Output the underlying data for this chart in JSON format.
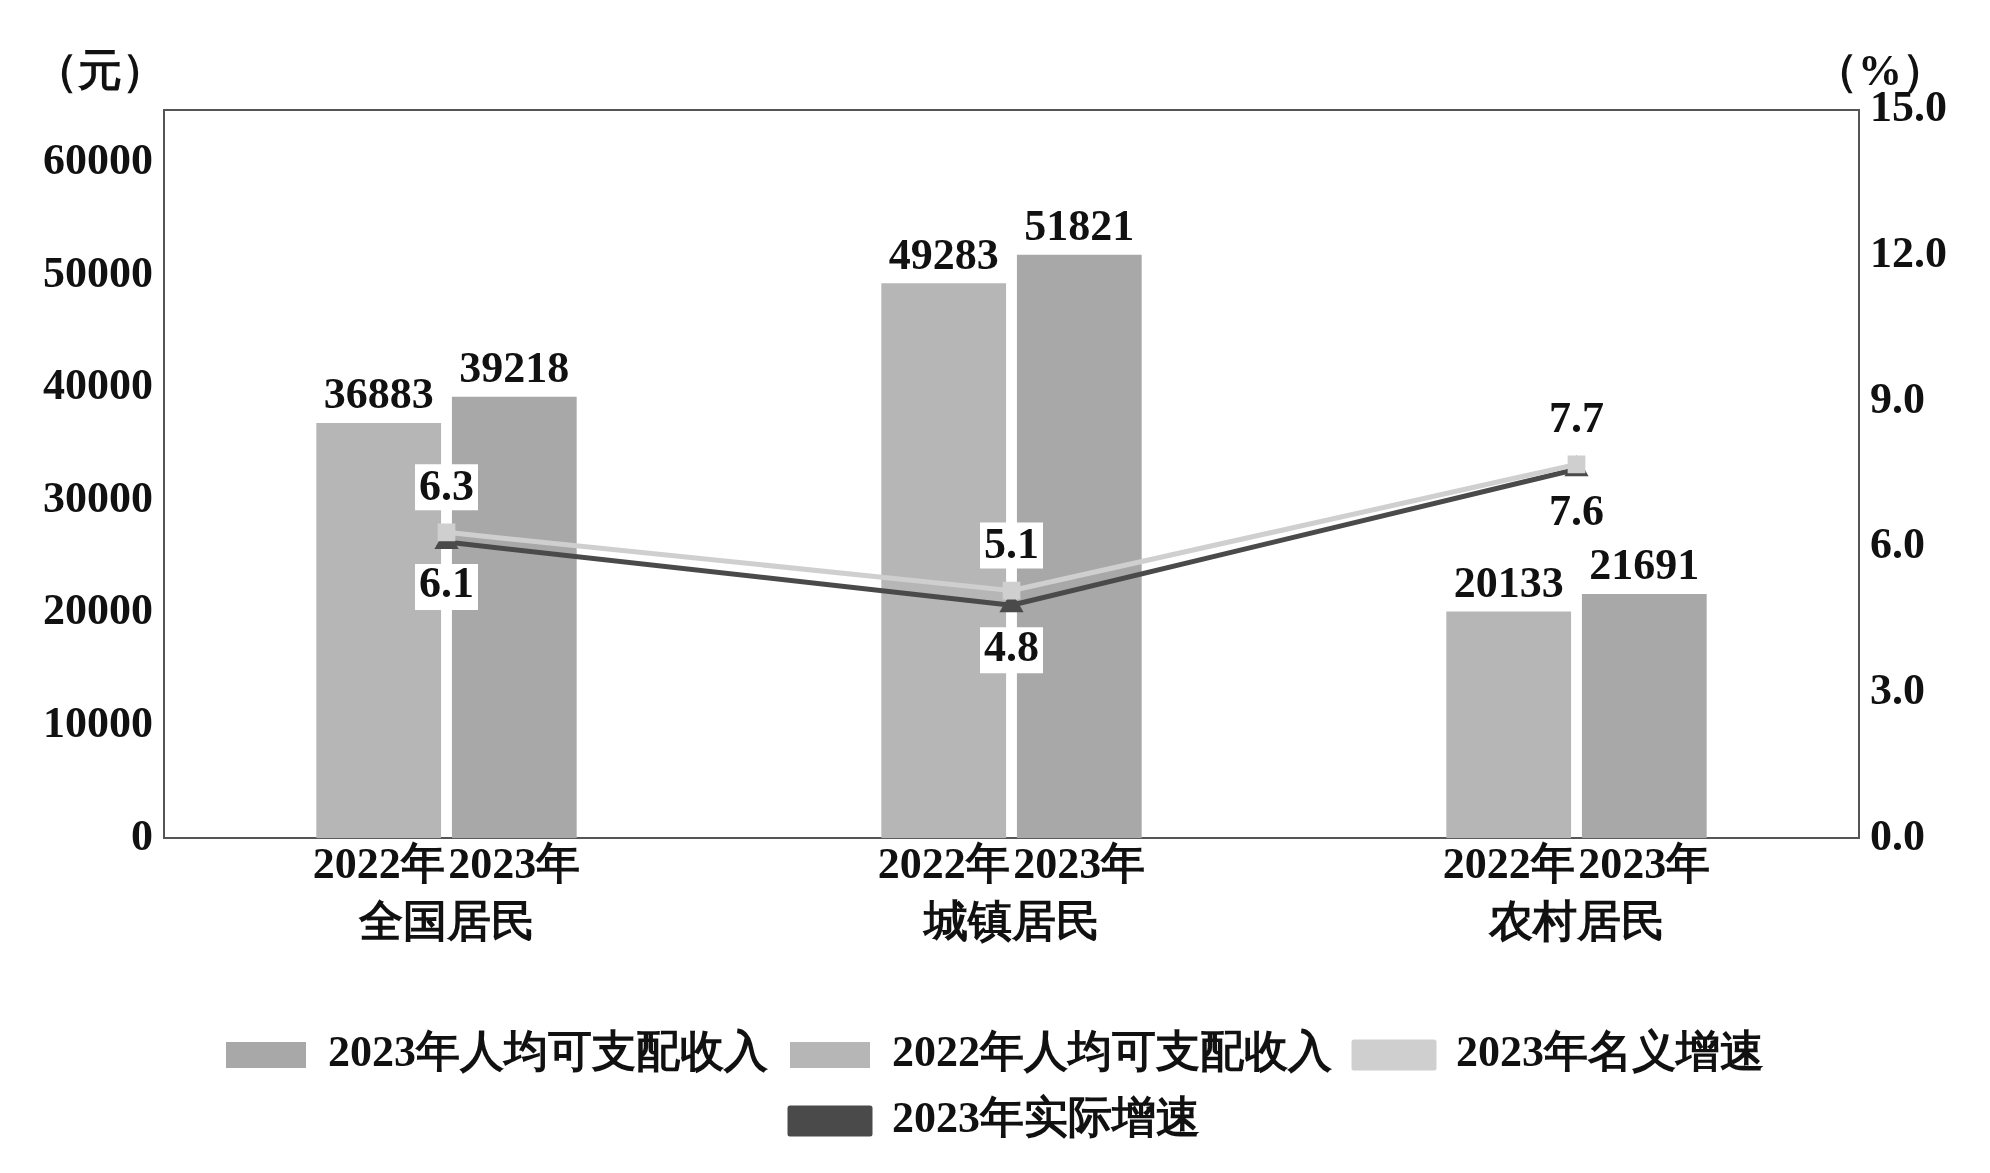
{
  "chart_data": {
    "type": "bar",
    "categories": [
      "全国居民",
      "城镇居民",
      "农村居民"
    ],
    "ylabel": "（元）",
    "y2label": "（%）",
    "ylim": [
      0,
      64680
    ],
    "yticks": [
      0,
      10000,
      20000,
      30000,
      40000,
      50000,
      60000
    ],
    "y2lim": [
      0,
      15
    ],
    "y2ticks": [
      {
        "value": 0,
        "label": "0.0"
      },
      {
        "value": 3,
        "label": "3.0"
      },
      {
        "value": 6,
        "label": "6.0"
      },
      {
        "value": 9,
        "label": "9.0"
      },
      {
        "value": 12,
        "label": "12.0"
      },
      {
        "value": 15,
        "label": "15.0"
      }
    ],
    "series": [
      {
        "name": "2023年人均可支配收入",
        "color": "#a8a8a8",
        "values": [
          39218,
          51821,
          21691
        ]
      },
      {
        "name": "2022年人均可支配收入",
        "color": "#b6b6b6",
        "values": [
          36883,
          49283,
          20133
        ]
      },
      {
        "name": "2023年名义增速",
        "type": "line",
        "axis": "y2",
        "marker": "square",
        "color": "#cfcfcf",
        "values": [
          6.3,
          5.1,
          7.7
        ]
      },
      {
        "name": "2023年实际增速",
        "type": "line",
        "axis": "y2",
        "marker": "triangle",
        "color": "#4a4a4a",
        "values": [
          6.1,
          4.8,
          7.6
        ]
      }
    ],
    "annotations": [
      "2022年",
      "2023年",
      "2022年",
      "2023年",
      "2022年",
      "2023年"
    ],
    "data_labels": true,
    "legend": "bottom",
    "grid": false
  }
}
